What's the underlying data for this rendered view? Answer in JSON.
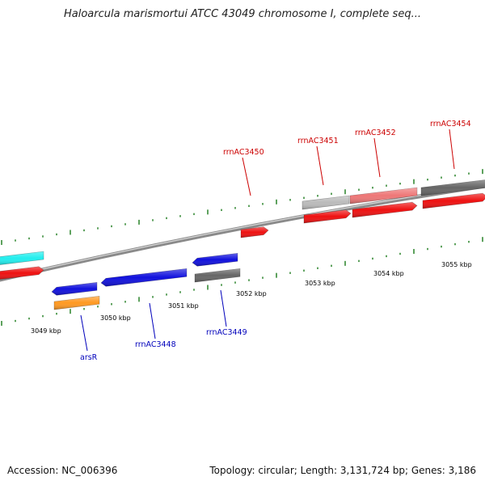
{
  "title": "Haloarcula marismortui ATCC 43049 chromosome I, complete seq...",
  "accession": "Accession: NC_006396",
  "topology": "Topology: circular; Length: 3,131,724 bp; Genes: 3,186",
  "colors": {
    "backbone": "#8a8a8a",
    "tick": "#1a7a1a",
    "forward_label": "#cc0000",
    "reverse_label": "#0000bb",
    "red": "#ee1111",
    "pink": "#ee7777",
    "dark_gray": "#666666",
    "light_gray": "#bbbbbb",
    "blue": "#1111dd",
    "cyan": "#22eeee",
    "orange": "#ff9922"
  },
  "scale": {
    "unit": "kbp",
    "labels": [
      "3049 kbp",
      "3050 kbp",
      "3051 kbp",
      "3052 kbp",
      "3053 kbp",
      "3054 kbp",
      "3055 kbp"
    ]
  },
  "gene_labels": {
    "forward": [
      "rrnAC3450",
      "rrnAC3451",
      "rrnAC3452",
      "rrnAC3454"
    ],
    "reverse": [
      "arsR",
      "rrnAC3448",
      "rrnAC3449"
    ]
  }
}
